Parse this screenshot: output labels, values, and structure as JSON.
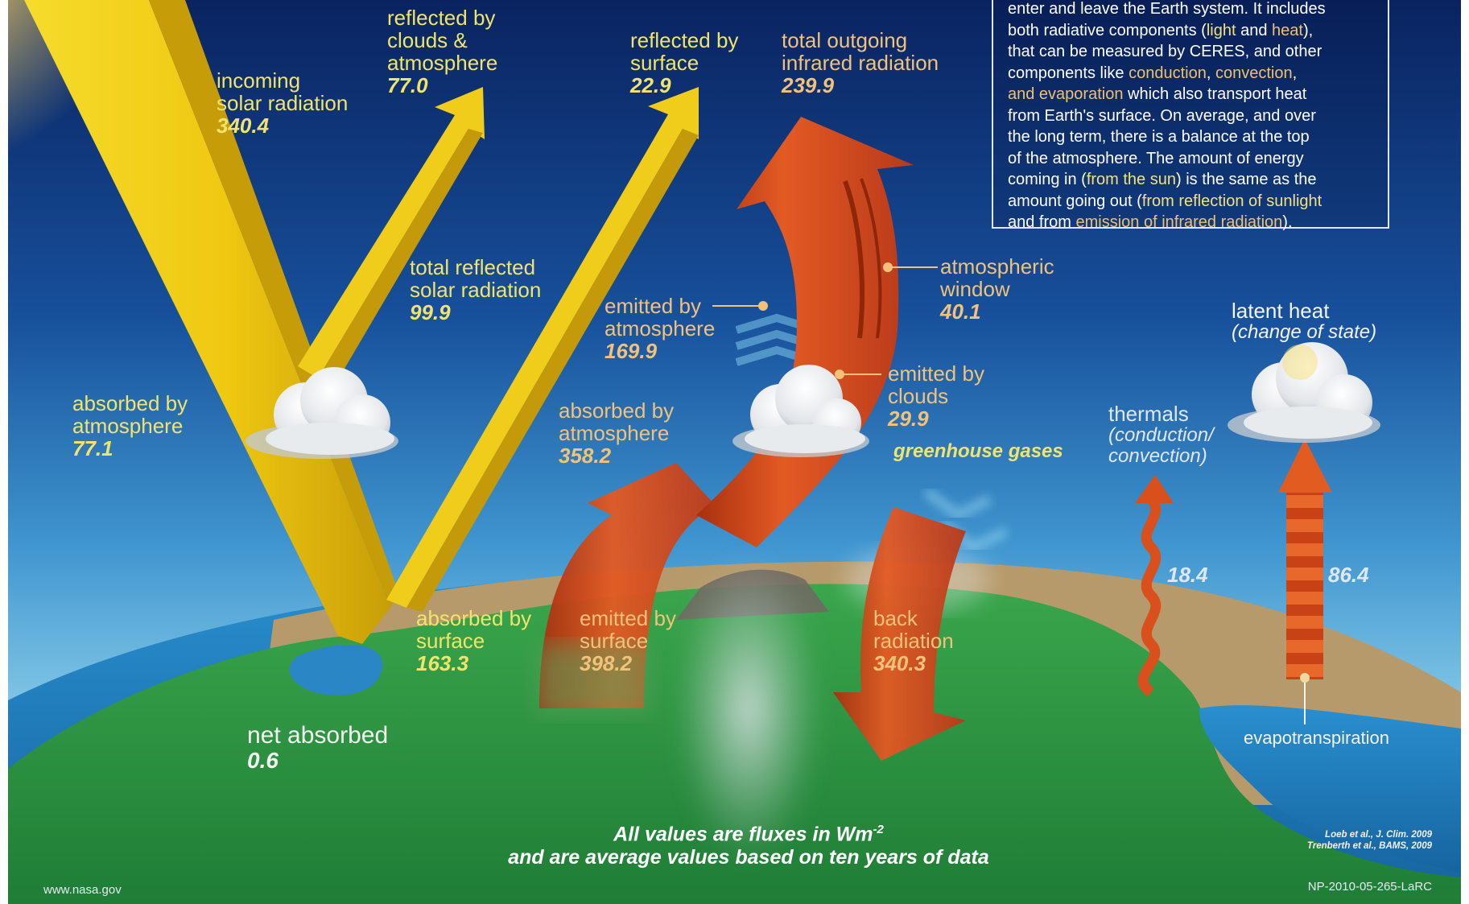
{
  "info_box": {
    "line1": "enter and leave the Earth system. It includes",
    "seg_both": "both radiative components (",
    "seg_light": "light",
    "seg_and": " and ",
    "seg_heat": "heat",
    "seg_after_heat": "),",
    "seg_that": "that can be measured by CERES, and other",
    "seg_components": "components like ",
    "seg_conduction": "conduction",
    "seg_comma": ", ",
    "seg_convection": "convection",
    "seg_comma2": ",",
    "seg_and_evap": "and evaporation",
    "seg_which": " which also transport heat",
    "seg_from_surface": "from Earth's surface. On average, and over",
    "seg_long_term": "the long term, there is a balance at the top",
    "seg_of_atm": "of the atmosphere. The amount of energy",
    "seg_coming_in": "coming in (",
    "seg_from_sun": "from the sun",
    "seg_same": ") is the same as the",
    "seg_amount_out": "amount going out (",
    "seg_reflection": "from reflection of sunlight",
    "seg_and_from": "and from ",
    "seg_emission": "emission of infrared radiation",
    "seg_end": ")."
  },
  "labels": {
    "incoming": {
      "line1": "incoming",
      "line2": "solar radiation",
      "value": "340.4"
    },
    "reflected_clouds": {
      "line1": "reflected by",
      "line2": "clouds &",
      "line3": "atmosphere",
      "value": "77.0"
    },
    "reflected_surface": {
      "line1": "reflected by",
      "line2": "surface",
      "value": "22.9"
    },
    "outgoing_ir": {
      "line1": "total outgoing",
      "line2": "infrared radiation",
      "value": "239.9"
    },
    "total_reflected": {
      "line1": "total reflected",
      "line2": "solar radiation",
      "value": "99.9"
    },
    "absorbed_atm_solar": {
      "line1": "absorbed by",
      "line2": "atmosphere",
      "value": "77.1"
    },
    "emitted_atm": {
      "line1": "emitted by",
      "line2": "atmosphere",
      "value": "169.9"
    },
    "atm_window": {
      "line1": "atmospheric",
      "line2": "window",
      "value": "40.1"
    },
    "emitted_clouds": {
      "line1": "emitted by",
      "line2": "clouds",
      "value": "29.9"
    },
    "absorbed_atm_ir": {
      "line1": "absorbed by",
      "line2": "atmosphere",
      "value": "358.2"
    },
    "greenhouse": {
      "text": "greenhouse gases"
    },
    "latent": {
      "line1": "latent heat",
      "line2": "(change of state)"
    },
    "thermals": {
      "line1": "thermals",
      "line2": "(conduction/",
      "line3": "convection)"
    },
    "thermals_value": "18.4",
    "latent_value": "86.4",
    "absorbed_surface": {
      "line1": "absorbed by",
      "line2": "surface",
      "value": "163.3"
    },
    "emitted_surface": {
      "line1": "emitted by",
      "line2": "surface",
      "value": "398.2"
    },
    "back_radiation": {
      "line1": "back",
      "line2": "radiation",
      "value": "340.3"
    },
    "net_absorbed": {
      "line1": "net absorbed",
      "value": "0.6"
    },
    "evapotranspiration": "evapotranspiration"
  },
  "footer": {
    "line1_pre": "All values are fluxes in Wm",
    "line1_sup": "-2",
    "line2": "and are average values based on ten years of data",
    "url": "www.nasa.gov",
    "ref1": "Loeb et al., J. Clim. 2009",
    "ref2": "Trenberth et al., BAMS, 2009",
    "code": "NP-2010-05-265-LaRC"
  },
  "colors": {
    "sky_top": "#0c2a66",
    "sky_mid": "#1f6cb4",
    "sky_low": "#76c3e7",
    "solar_yellow": "#f1cd12",
    "ir_red": "#d8491d",
    "land_green": "#2f9a44",
    "land_tan": "#b89a6c",
    "ocean": "#1f78b8",
    "label_yellow": "#f1e46a",
    "label_orange": "#f2c27a"
  }
}
